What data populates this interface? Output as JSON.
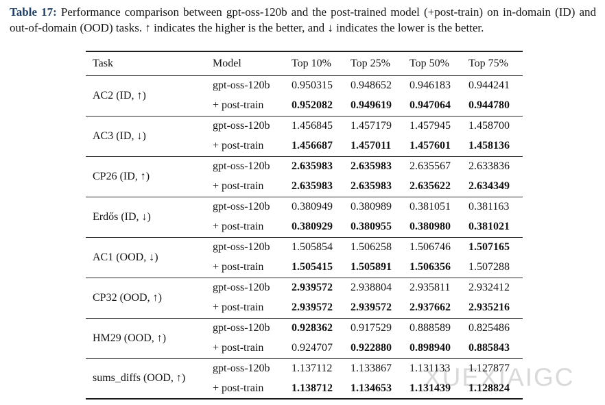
{
  "caption": {
    "label": "Table 17:",
    "text": "Performance comparison between gpt-oss-120b and the post-trained model (+post-train) on in-domain (ID) and out-of-domain (OOD) tasks. ↑ indicates the higher is the better, and ↓ indicates the lower is the better."
  },
  "watermark": "XUEXIAIGC",
  "colors": {
    "caption_label": "#1f4066",
    "body_text": "#141414",
    "rule": "#1c1c1c",
    "watermark": "#d9d9d9"
  },
  "table": {
    "headers": [
      "Task",
      "Model",
      "Top 10%",
      "Top 25%",
      "Top 50%",
      "Top 75%"
    ],
    "groups": [
      {
        "task": "AC2 (ID, ↑)",
        "rows": [
          {
            "model": "gpt-oss-120b",
            "values": [
              "0.950315",
              "0.948652",
              "0.946183",
              "0.944241"
            ],
            "bold": [
              false,
              false,
              false,
              false
            ]
          },
          {
            "model": "+ post-train",
            "values": [
              "0.952082",
              "0.949619",
              "0.947064",
              "0.944780"
            ],
            "bold": [
              true,
              true,
              true,
              true
            ]
          }
        ]
      },
      {
        "task": "AC3 (ID, ↓)",
        "rows": [
          {
            "model": "gpt-oss-120b",
            "values": [
              "1.456845",
              "1.457179",
              "1.457945",
              "1.458700"
            ],
            "bold": [
              false,
              false,
              false,
              false
            ]
          },
          {
            "model": "+ post-train",
            "values": [
              "1.456687",
              "1.457011",
              "1.457601",
              "1.458136"
            ],
            "bold": [
              true,
              true,
              true,
              true
            ]
          }
        ]
      },
      {
        "task": "CP26 (ID, ↑)",
        "rows": [
          {
            "model": "gpt-oss-120b",
            "values": [
              "2.635983",
              "2.635983",
              "2.635567",
              "2.633836"
            ],
            "bold": [
              true,
              true,
              false,
              false
            ]
          },
          {
            "model": "+ post-train",
            "values": [
              "2.635983",
              "2.635983",
              "2.635622",
              "2.634349"
            ],
            "bold": [
              true,
              true,
              true,
              true
            ]
          }
        ]
      },
      {
        "task": "Erdős (ID, ↓)",
        "rows": [
          {
            "model": "gpt-oss-120b",
            "values": [
              "0.380949",
              "0.380989",
              "0.381051",
              "0.381163"
            ],
            "bold": [
              false,
              false,
              false,
              false
            ]
          },
          {
            "model": "+ post-train",
            "values": [
              "0.380929",
              "0.380955",
              "0.380980",
              "0.381021"
            ],
            "bold": [
              true,
              true,
              true,
              true
            ]
          }
        ]
      },
      {
        "task": "AC1 (OOD, ↓)",
        "rows": [
          {
            "model": "gpt-oss-120b",
            "values": [
              "1.505854",
              "1.506258",
              "1.506746",
              "1.507165"
            ],
            "bold": [
              false,
              false,
              false,
              true
            ]
          },
          {
            "model": "+ post-train",
            "values": [
              "1.505415",
              "1.505891",
              "1.506356",
              "1.507288"
            ],
            "bold": [
              true,
              true,
              true,
              false
            ]
          }
        ]
      },
      {
        "task": "CP32 (OOD, ↑)",
        "rows": [
          {
            "model": "gpt-oss-120b",
            "values": [
              "2.939572",
              "2.938804",
              "2.935811",
              "2.932412"
            ],
            "bold": [
              true,
              false,
              false,
              false
            ]
          },
          {
            "model": "+ post-train",
            "values": [
              "2.939572",
              "2.939572",
              "2.937662",
              "2.935216"
            ],
            "bold": [
              true,
              true,
              true,
              true
            ]
          }
        ]
      },
      {
        "task": "HM29 (OOD, ↑)",
        "rows": [
          {
            "model": "gpt-oss-120b",
            "values": [
              "0.928362",
              "0.917529",
              "0.888589",
              "0.825486"
            ],
            "bold": [
              true,
              false,
              false,
              false
            ]
          },
          {
            "model": "+ post-train",
            "values": [
              "0.924707",
              "0.922880",
              "0.898940",
              "0.885843"
            ],
            "bold": [
              false,
              true,
              true,
              true
            ]
          }
        ]
      },
      {
        "task": "sums_diffs (OOD, ↑)",
        "rows": [
          {
            "model": "gpt-oss-120b",
            "values": [
              "1.137112",
              "1.133867",
              "1.131133",
              "1.127877"
            ],
            "bold": [
              false,
              false,
              false,
              false
            ]
          },
          {
            "model": "+ post-train",
            "values": [
              "1.138712",
              "1.134653",
              "1.131439",
              "1.128824"
            ],
            "bold": [
              true,
              true,
              true,
              true
            ]
          }
        ]
      }
    ]
  }
}
